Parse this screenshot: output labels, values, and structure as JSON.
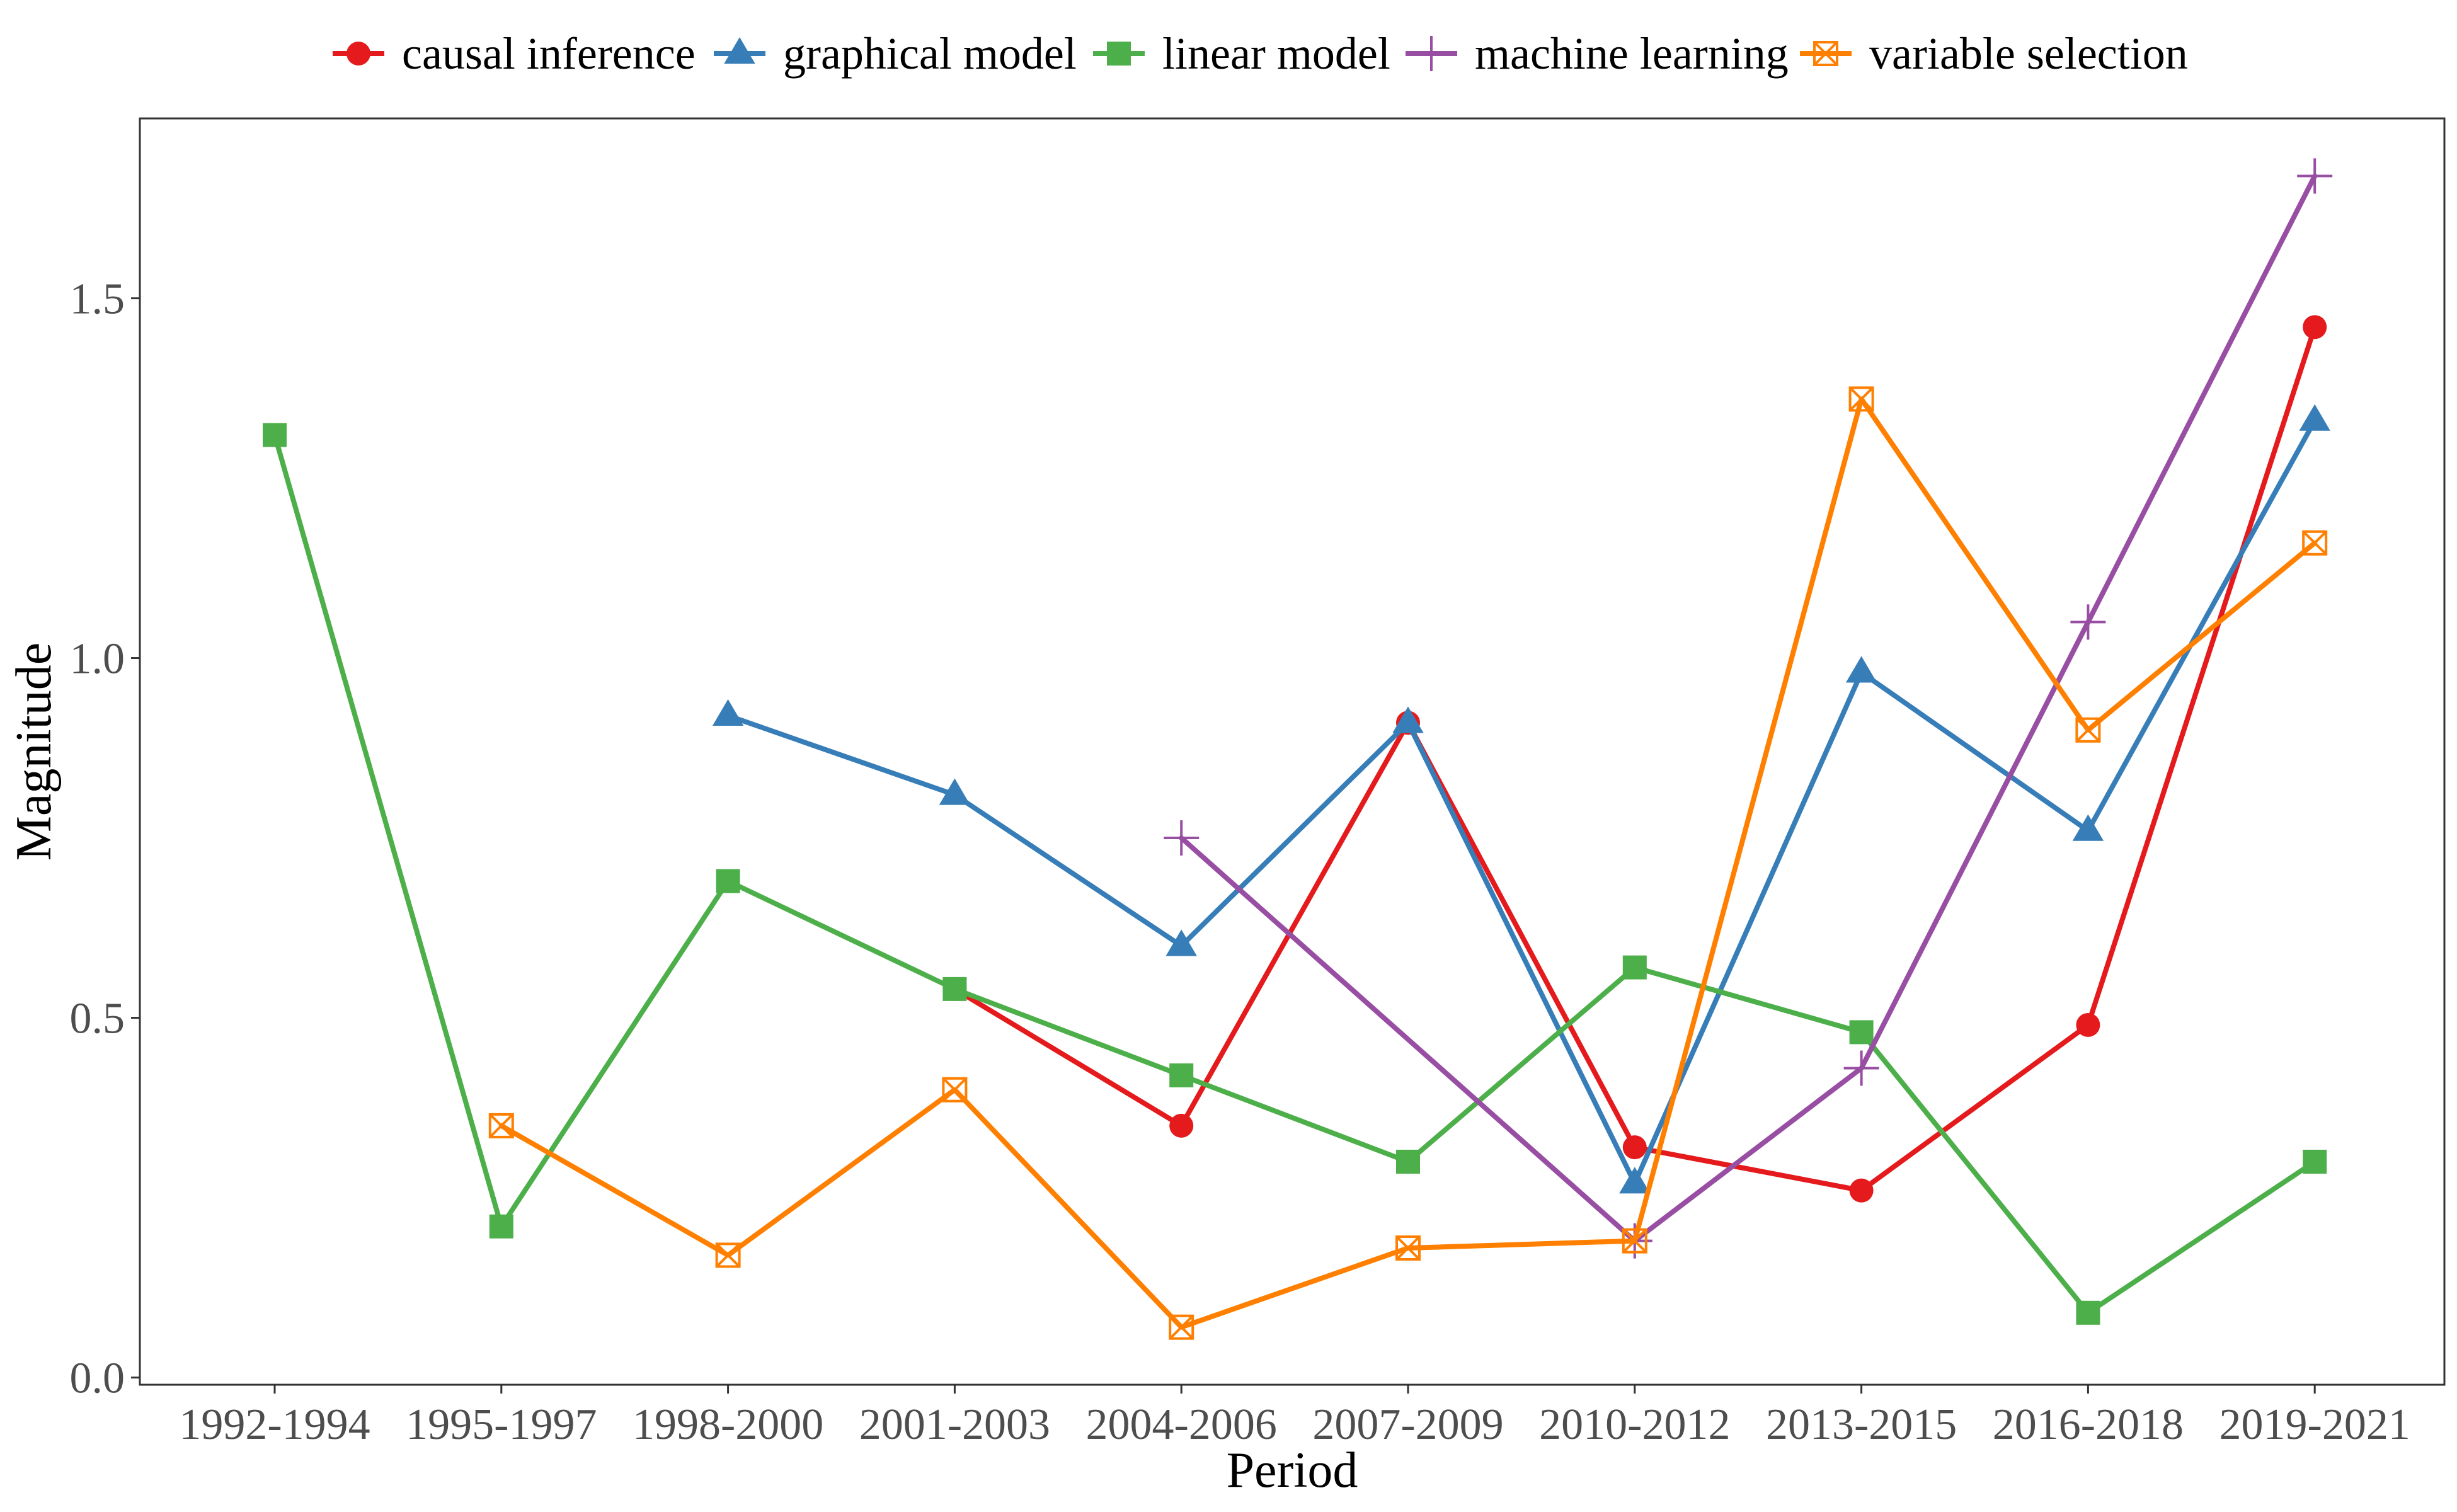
{
  "chart_data": {
    "type": "line",
    "title": "",
    "xlabel": "Period",
    "ylabel": "Magnitude",
    "ylim": [
      -0.01,
      1.75
    ],
    "yticks": [
      "0.0",
      "0.5",
      "1.0",
      "1.5"
    ],
    "ytick_values": [
      0,
      0.5,
      1.0,
      1.5
    ],
    "grid": false,
    "legend_position": "top",
    "categories": [
      "1992-1994",
      "1995-1997",
      "1998-2000",
      "2001-2003",
      "2004-2006",
      "2007-2009",
      "2010-2012",
      "2013-2015",
      "2016-2018",
      "2019-2021"
    ],
    "series": [
      {
        "name": "causal inference",
        "color": "#e41a1c",
        "marker": "circle",
        "values": [
          null,
          null,
          null,
          0.54,
          0.35,
          0.91,
          0.32,
          0.26,
          0.49,
          1.46
        ]
      },
      {
        "name": "graphical model",
        "color": "#377eb8",
        "marker": "triangle",
        "values": [
          null,
          null,
          0.92,
          0.81,
          0.6,
          0.91,
          0.27,
          0.98,
          0.76,
          1.33
        ]
      },
      {
        "name": "linear model",
        "color": "#4daf4a",
        "marker": "square",
        "values": [
          1.31,
          0.21,
          0.69,
          0.54,
          0.42,
          0.3,
          0.57,
          0.48,
          0.09,
          0.3
        ]
      },
      {
        "name": "machine learning",
        "color": "#984ea3",
        "marker": "plus",
        "values": [
          null,
          null,
          null,
          null,
          0.75,
          null,
          0.19,
          0.43,
          1.05,
          1.67
        ]
      },
      {
        "name": "variable selection",
        "color": "#ff7f00",
        "marker": "boxcross",
        "values": [
          null,
          0.35,
          0.17,
          0.4,
          0.07,
          0.18,
          0.19,
          1.36,
          0.9,
          1.16
        ]
      }
    ]
  }
}
